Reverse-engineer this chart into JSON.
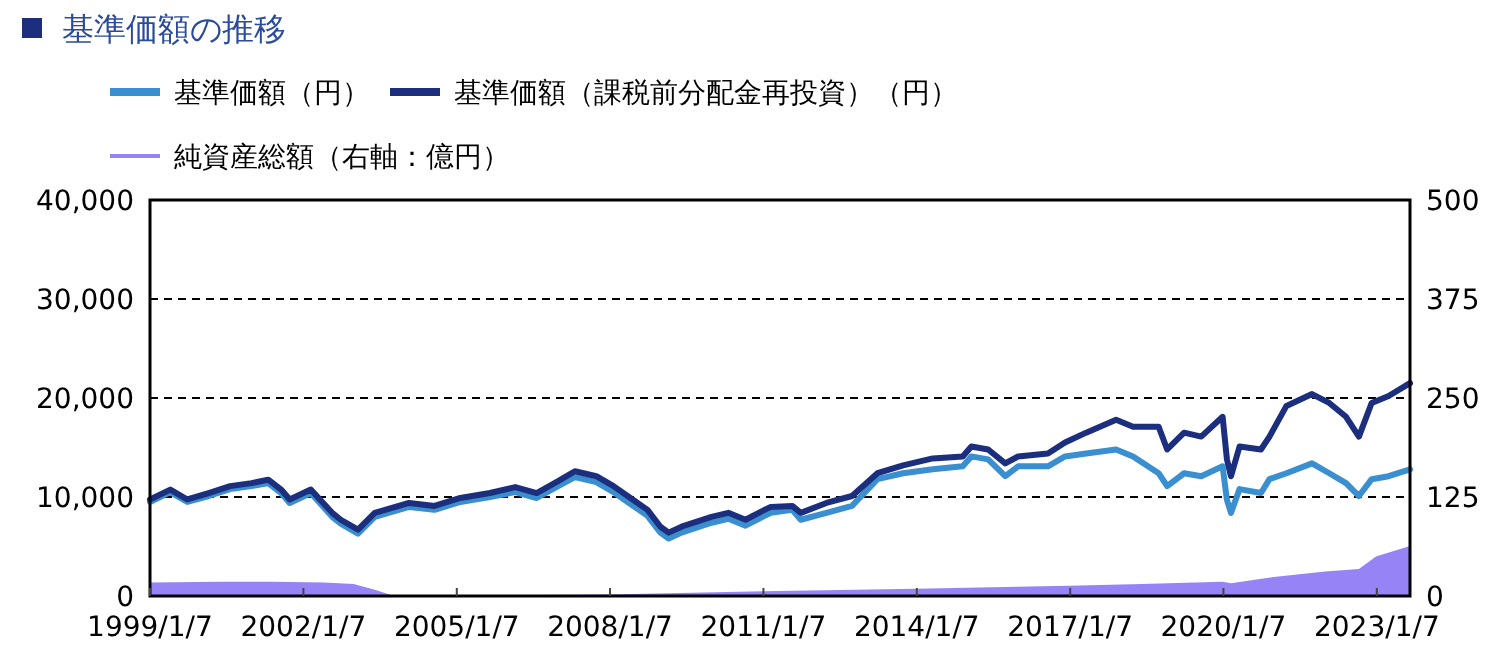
{
  "chart_data": {
    "type": "line",
    "title": "基準価額の推移",
    "legend": "top",
    "grid": "y",
    "xlim": [
      "1999-01-07",
      "2023-09-01"
    ],
    "xticks": [
      {
        "value": "1999-01-07",
        "label": "1999/1/7"
      },
      {
        "value": "2002-01-07",
        "label": "2002/1/7"
      },
      {
        "value": "2005-01-07",
        "label": "2005/1/7"
      },
      {
        "value": "2008-01-07",
        "label": "2008/1/7"
      },
      {
        "value": "2011-01-07",
        "label": "2011/1/7"
      },
      {
        "value": "2014-01-07",
        "label": "2014/1/7"
      },
      {
        "value": "2017-01-07",
        "label": "2017/1/7"
      },
      {
        "value": "2020-01-07",
        "label": "2020/1/7"
      },
      {
        "value": "2023-01-07",
        "label": "2023/1/7"
      }
    ],
    "ylim": [
      0,
      40000
    ],
    "yticks": [
      0,
      {
        "value": 10000,
        "label": "10,000"
      },
      {
        "value": 20000,
        "label": "20,000"
      },
      {
        "value": 30000,
        "label": "30,000"
      },
      {
        "value": 40000,
        "label": "40,000"
      }
    ],
    "y2lim": [
      0,
      500
    ],
    "y2ticks": [
      0,
      125,
      250,
      375,
      500
    ],
    "series": [
      {
        "name": "純資産総額（右軸：億円）",
        "type": "area",
        "axis": "y2",
        "color": "#9684f7",
        "x": [
          "1999-01-07",
          "2000-06",
          "2001-06",
          "2002-06",
          "2003-01",
          "2003-06",
          "2003-10",
          "2006-01",
          "2008-01",
          "2011-01",
          "2014-01",
          "2017-01",
          "2018-06",
          "2020-01",
          "2020-03",
          "2021-01",
          "2022-01",
          "2022-09",
          "2023-01",
          "2023-09-01"
        ],
        "values": [
          17,
          18,
          18,
          17,
          15,
          8,
          1,
          1,
          2,
          6,
          9,
          13,
          15,
          18,
          16,
          24,
          31,
          34,
          50,
          63
        ]
      },
      {
        "name": "基準価額（円）",
        "color": "#3a8fd0",
        "x": [
          "1999-01-07",
          "1999-06",
          "1999-10",
          "2000-03",
          "2000-08",
          "2001-01",
          "2001-05",
          "2001-08",
          "2001-10",
          "2002-03",
          "2002-08",
          "2002-10",
          "2003-02",
          "2003-06",
          "2004-02",
          "2004-08",
          "2005-02",
          "2005-09",
          "2006-03",
          "2006-08",
          "2007-01",
          "2007-05",
          "2007-10",
          "2008-02",
          "2008-06",
          "2008-10",
          "2009-01",
          "2009-03",
          "2009-06",
          "2010-01",
          "2010-05",
          "2010-09",
          "2011-01",
          "2011-03",
          "2011-08",
          "2011-10",
          "2012-04",
          "2012-10",
          "2013-04",
          "2013-10",
          "2014-05",
          "2014-12",
          "2015-02",
          "2015-06",
          "2015-10",
          "2016-01",
          "2016-08",
          "2016-12",
          "2017-05",
          "2017-12",
          "2018-04",
          "2018-10",
          "2018-12",
          "2019-04",
          "2019-08",
          "2020-01",
          "2020-02",
          "2020-03",
          "2020-05",
          "2020-10",
          "2020-12",
          "2021-04",
          "2021-10",
          "2022-02",
          "2022-06",
          "2022-09",
          "2022-12",
          "2023-04",
          "2023-09-01"
        ],
        "values": [
          9500,
          10500,
          9500,
          10100,
          10800,
          11100,
          11400,
          10400,
          9400,
          10400,
          8000,
          7300,
          6300,
          8000,
          9000,
          8700,
          9500,
          10000,
          10500,
          9900,
          11100,
          12000,
          11500,
          10500,
          9300,
          8100,
          6400,
          5800,
          6400,
          7400,
          7800,
          7100,
          8000,
          8400,
          8700,
          7700,
          8400,
          9100,
          11800,
          12400,
          12800,
          13100,
          14100,
          13800,
          12100,
          13100,
          13100,
          14100,
          14400,
          14800,
          14100,
          12400,
          11100,
          12400,
          12100,
          13100,
          9700,
          8400,
          10800,
          10400,
          11800,
          12400,
          13400,
          12400,
          11400,
          10100,
          11800,
          12100,
          12800
        ]
      },
      {
        "name": "基準価額（課税前分配金再投資）（円）",
        "color": "#1b2f7e",
        "x": [
          "1999-01-07",
          "1999-06",
          "1999-10",
          "2000-03",
          "2000-08",
          "2001-01",
          "2001-05",
          "2001-08",
          "2001-10",
          "2002-03",
          "2002-08",
          "2002-10",
          "2003-02",
          "2003-06",
          "2004-02",
          "2004-08",
          "2005-02",
          "2005-09",
          "2006-03",
          "2006-08",
          "2007-01",
          "2007-05",
          "2007-10",
          "2008-02",
          "2008-06",
          "2008-10",
          "2009-01",
          "2009-03",
          "2009-06",
          "2010-01",
          "2010-05",
          "2010-09",
          "2011-01",
          "2011-03",
          "2011-08",
          "2011-10",
          "2012-04",
          "2012-10",
          "2013-04",
          "2013-10",
          "2014-05",
          "2014-12",
          "2015-02",
          "2015-06",
          "2015-10",
          "2016-01",
          "2016-08",
          "2016-12",
          "2017-05",
          "2017-12",
          "2018-04",
          "2018-10",
          "2018-12",
          "2019-04",
          "2019-08",
          "2020-01",
          "2020-02",
          "2020-03",
          "2020-05",
          "2020-10",
          "2020-12",
          "2021-04",
          "2021-10",
          "2022-02",
          "2022-06",
          "2022-09",
          "2022-12",
          "2023-04",
          "2023-09-01"
        ],
        "values": [
          9750,
          10750,
          9750,
          10400,
          11100,
          11400,
          11750,
          10750,
          9750,
          10750,
          8400,
          7700,
          6700,
          8400,
          9400,
          9100,
          9900,
          10400,
          11000,
          10400,
          11600,
          12600,
          12100,
          11100,
          9900,
          8700,
          7000,
          6400,
          7000,
          8000,
          8400,
          7700,
          8600,
          9000,
          9100,
          8400,
          9400,
          10100,
          12400,
          13200,
          13900,
          14100,
          15100,
          14800,
          13400,
          14100,
          14400,
          15500,
          16500,
          17800,
          17100,
          17100,
          14800,
          16500,
          16100,
          18100,
          13800,
          12100,
          15100,
          14800,
          16100,
          19200,
          20400,
          19500,
          18100,
          16100,
          19500,
          20200,
          21500
        ]
      }
    ]
  }
}
